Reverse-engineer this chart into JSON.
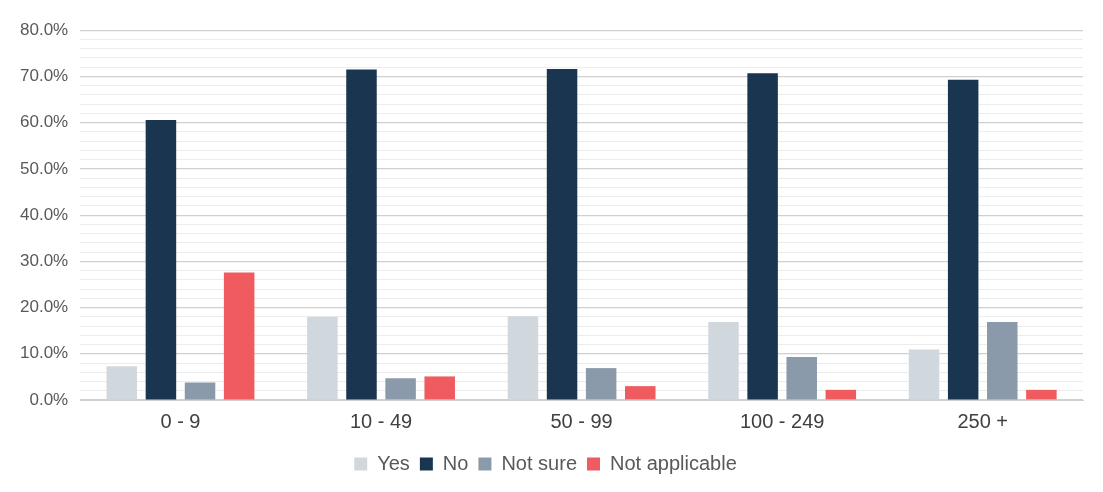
{
  "chart_data": {
    "type": "bar",
    "categories": [
      "0 - 9",
      "10 - 49",
      "50 - 99",
      "100 - 249",
      "250 +"
    ],
    "series": [
      {
        "name": "Yes",
        "color": "#d0d8de",
        "values": [
          7.3,
          18.0,
          18.1,
          16.9,
          10.9
        ]
      },
      {
        "name": "No",
        "color": "#1a3550",
        "values": [
          60.6,
          71.5,
          71.6,
          70.7,
          69.3
        ]
      },
      {
        "name": "Not sure",
        "color": "#8a9aaa",
        "values": [
          3.8,
          4.7,
          6.9,
          9.3,
          16.9
        ]
      },
      {
        "name": "Not applicable",
        "color": "#ef5b5e",
        "values": [
          27.6,
          5.1,
          3.0,
          2.2,
          2.2
        ]
      }
    ],
    "ylim": [
      0,
      80
    ],
    "yticks": [
      {
        "value": 0,
        "label": "0.0%"
      },
      {
        "value": 2,
        "label": null
      },
      {
        "value": 4,
        "label": null
      },
      {
        "value": 6,
        "label": null
      },
      {
        "value": 8,
        "label": null
      },
      {
        "value": 10,
        "label": "10.0%"
      },
      {
        "value": 12,
        "label": null
      },
      {
        "value": 14,
        "label": null
      },
      {
        "value": 16,
        "label": null
      },
      {
        "value": 18,
        "label": null
      },
      {
        "value": 20,
        "label": "20.0%"
      },
      {
        "value": 22,
        "label": null
      },
      {
        "value": 24,
        "label": null
      },
      {
        "value": 26,
        "label": null
      },
      {
        "value": 28,
        "label": null
      },
      {
        "value": 30,
        "label": "30.0%"
      },
      {
        "value": 32,
        "label": null
      },
      {
        "value": 34,
        "label": null
      },
      {
        "value": 36,
        "label": null
      },
      {
        "value": 38,
        "label": null
      },
      {
        "value": 40,
        "label": "40.0%"
      },
      {
        "value": 42,
        "label": null
      },
      {
        "value": 44,
        "label": null
      },
      {
        "value": 46,
        "label": null
      },
      {
        "value": 48,
        "label": null
      },
      {
        "value": 50,
        "label": "50.0%"
      },
      {
        "value": 52,
        "label": null
      },
      {
        "value": 54,
        "label": null
      },
      {
        "value": 56,
        "label": null
      },
      {
        "value": 58,
        "label": null
      },
      {
        "value": 60,
        "label": "60.0%"
      },
      {
        "value": 62,
        "label": null
      },
      {
        "value": 64,
        "label": null
      },
      {
        "value": 66,
        "label": null
      },
      {
        "value": 68,
        "label": null
      },
      {
        "value": 70,
        "label": "70.0%"
      },
      {
        "value": 72,
        "label": null
      },
      {
        "value": 74,
        "label": null
      },
      {
        "value": 76,
        "label": null
      },
      {
        "value": 78,
        "label": null
      },
      {
        "value": 80,
        "label": "80.0%"
      }
    ],
    "grid": "y",
    "legend": "bottom"
  }
}
